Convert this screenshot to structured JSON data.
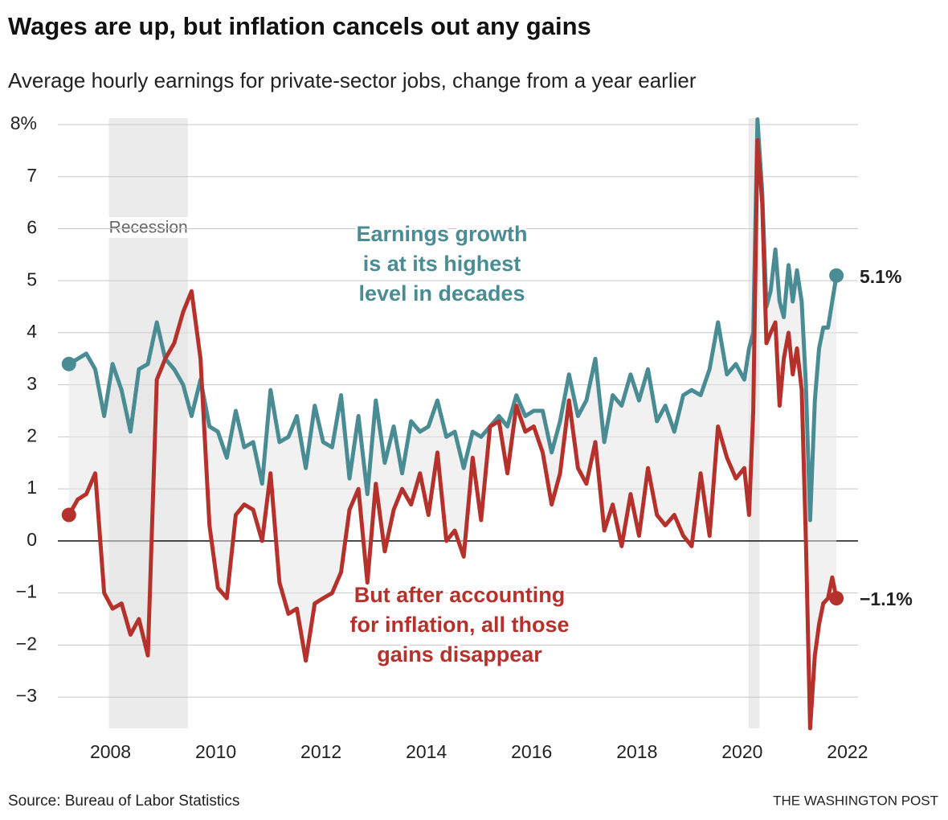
{
  "chart_data": {
    "type": "line",
    "title": "Wages are up, but inflation cancels out any gains",
    "subtitle": "Average hourly earnings for private-sector jobs, change from a year earlier",
    "source": "Source: Bureau of Labor Statistics",
    "credit": "THE WASHINGTON POST",
    "xlim": [
      2007,
      2022.2
    ],
    "xticks": [
      2008,
      2010,
      2012,
      2014,
      2016,
      2018,
      2020,
      2022
    ],
    "ylim": [
      -3.6,
      8.2
    ],
    "yticks": [
      {
        "value": 8,
        "label": "8%"
      },
      7,
      6,
      5,
      4,
      3,
      2,
      1,
      0,
      {
        "value": -1,
        "label": "−1"
      },
      {
        "value": -2,
        "label": "−2"
      },
      {
        "value": -3,
        "label": "−3"
      }
    ],
    "grid": true,
    "shaded": [
      {
        "label": "Recession",
        "x": [
          2007.97,
          2009.47
        ]
      },
      {
        "x": [
          2020.12,
          2020.33
        ]
      }
    ],
    "x": [
      2007.21,
      2007.38,
      2007.54,
      2007.71,
      2007.88,
      2008.04,
      2008.21,
      2008.38,
      2008.54,
      2008.71,
      2008.88,
      2009.04,
      2009.21,
      2009.38,
      2009.54,
      2009.71,
      2009.88,
      2010.04,
      2010.21,
      2010.38,
      2010.54,
      2010.71,
      2010.88,
      2011.04,
      2011.21,
      2011.38,
      2011.54,
      2011.71,
      2011.88,
      2012.04,
      2012.21,
      2012.38,
      2012.54,
      2012.71,
      2012.88,
      2013.04,
      2013.21,
      2013.38,
      2013.54,
      2013.71,
      2013.88,
      2014.04,
      2014.21,
      2014.38,
      2014.54,
      2014.71,
      2014.88,
      2015.04,
      2015.21,
      2015.38,
      2015.54,
      2015.71,
      2015.88,
      2016.04,
      2016.21,
      2016.38,
      2016.54,
      2016.71,
      2016.88,
      2017.04,
      2017.21,
      2017.38,
      2017.54,
      2017.71,
      2017.88,
      2018.04,
      2018.21,
      2018.38,
      2018.54,
      2018.71,
      2018.88,
      2019.04,
      2019.21,
      2019.38,
      2019.54,
      2019.71,
      2019.88,
      2020.04,
      2020.13,
      2020.21,
      2020.29,
      2020.38,
      2020.46,
      2020.54,
      2020.63,
      2020.71,
      2020.79,
      2020.88,
      2020.96,
      2021.04,
      2021.13,
      2021.21,
      2021.29,
      2021.38,
      2021.46,
      2021.54,
      2021.63,
      2021.71,
      2021.79
    ],
    "series": [
      {
        "name": "Earnings growth",
        "color": "#4a8c94",
        "end_label": "5.1%",
        "annotation": [
          "Earnings growth",
          "is at its highest",
          "level in decades"
        ],
        "values": [
          3.4,
          3.5,
          3.6,
          3.3,
          2.4,
          3.4,
          2.9,
          2.1,
          3.3,
          3.4,
          4.2,
          3.5,
          3.3,
          3.0,
          2.4,
          3.1,
          2.2,
          2.1,
          1.6,
          2.5,
          1.8,
          1.9,
          1.1,
          2.9,
          1.9,
          2.0,
          2.4,
          1.4,
          2.6,
          1.9,
          1.8,
          2.8,
          1.2,
          2.4,
          0.9,
          2.7,
          1.5,
          2.2,
          1.3,
          2.3,
          2.1,
          2.2,
          2.7,
          2.0,
          2.1,
          1.4,
          2.1,
          2.0,
          2.2,
          2.4,
          2.2,
          2.8,
          2.4,
          2.5,
          2.5,
          1.7,
          2.3,
          3.2,
          2.4,
          2.7,
          3.5,
          1.9,
          2.8,
          2.6,
          3.2,
          2.7,
          3.3,
          2.3,
          2.6,
          2.1,
          2.8,
          2.9,
          2.8,
          3.3,
          4.2,
          3.2,
          3.4,
          3.1,
          3.7,
          4.0,
          8.1,
          6.7,
          4.5,
          4.8,
          5.6,
          4.6,
          4.3,
          5.3,
          4.6,
          5.2,
          4.6,
          3.0,
          0.4,
          2.7,
          3.7,
          4.1,
          4.1,
          4.6,
          5.1
        ]
      },
      {
        "name": "After inflation",
        "color": "#b5312c",
        "end_label": "−1.1%",
        "annotation": [
          "But after accounting",
          "for inflation, all those",
          "gains disappear"
        ],
        "values": [
          0.5,
          0.8,
          0.9,
          1.3,
          -1.0,
          -1.3,
          -1.2,
          -1.8,
          -1.5,
          -2.2,
          3.1,
          3.5,
          3.8,
          4.4,
          4.8,
          3.5,
          0.3,
          -0.9,
          -1.1,
          0.5,
          0.7,
          0.6,
          0.0,
          1.3,
          -0.8,
          -1.4,
          -1.3,
          -2.3,
          -1.2,
          -1.1,
          -1.0,
          -0.6,
          0.6,
          1.0,
          -0.8,
          1.1,
          -0.2,
          0.6,
          1.0,
          0.7,
          1.3,
          0.5,
          1.7,
          0.0,
          0.2,
          -0.3,
          1.6,
          0.4,
          2.2,
          2.3,
          1.3,
          2.6,
          2.1,
          2.2,
          1.7,
          0.7,
          1.3,
          2.7,
          1.4,
          1.1,
          1.9,
          0.2,
          0.7,
          -0.1,
          0.9,
          0.1,
          1.4,
          0.5,
          0.3,
          0.5,
          0.1,
          -0.1,
          1.3,
          0.1,
          2.2,
          1.6,
          1.2,
          1.4,
          0.5,
          2.5,
          7.7,
          6.5,
          3.8,
          4.0,
          4.2,
          2.6,
          3.5,
          4.0,
          3.2,
          3.7,
          2.9,
          0.0,
          -3.6,
          -2.2,
          -1.6,
          -1.2,
          -1.1,
          -0.7,
          -1.1
        ]
      }
    ]
  }
}
